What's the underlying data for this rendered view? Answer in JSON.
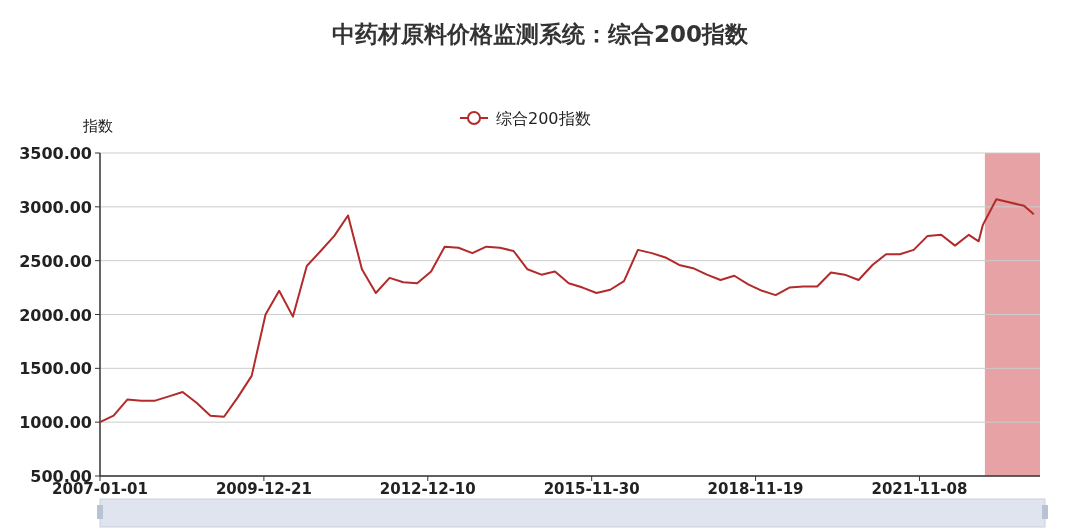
{
  "chart_data": {
    "type": "line",
    "title": "中药材原料价格监测系统：综合200指数",
    "ylabel": "指数",
    "x": [
      "2007-01-01",
      "2007-04-01",
      "2007-07-01",
      "2007-10-01",
      "2008-01-01",
      "2008-04-01",
      "2008-07-01",
      "2008-10-01",
      "2009-01-01",
      "2009-04-01",
      "2009-07-01",
      "2009-10-01",
      "2010-01-01",
      "2010-04-01",
      "2010-07-01",
      "2010-10-01",
      "2011-01-01",
      "2011-04-01",
      "2011-07-01",
      "2011-10-01",
      "2012-01-01",
      "2012-04-01",
      "2012-07-01",
      "2012-10-01",
      "2013-01-01",
      "2013-04-01",
      "2013-07-01",
      "2013-10-01",
      "2014-01-01",
      "2014-04-01",
      "2014-07-01",
      "2014-10-01",
      "2015-01-01",
      "2015-04-01",
      "2015-07-01",
      "2015-10-01",
      "2016-01-01",
      "2016-04-01",
      "2016-07-01",
      "2016-10-01",
      "2017-01-01",
      "2017-04-01",
      "2017-07-01",
      "2017-10-01",
      "2018-01-01",
      "2018-04-01",
      "2018-07-01",
      "2018-10-01",
      "2019-01-01",
      "2019-04-01",
      "2019-07-01",
      "2019-10-01",
      "2020-01-01",
      "2020-04-01",
      "2020-07-01",
      "2020-10-01",
      "2021-01-01",
      "2021-04-01",
      "2021-07-01",
      "2021-10-01",
      "2022-01-01",
      "2022-04-01",
      "2022-07-01",
      "2022-10-01",
      "2022-12-05",
      "2023-01-01",
      "2023-04-01",
      "2023-07-01",
      "2023-10-01",
      "2023-12-05"
    ],
    "series": [
      {
        "name": "综合200指数",
        "color": "#b22a2a",
        "values": [
          1000,
          1060,
          1210,
          1200,
          1200,
          1240,
          1280,
          1180,
          1060,
          1050,
          1230,
          1430,
          2000,
          2220,
          1980,
          2450,
          2590,
          2730,
          2920,
          2420,
          2200,
          2340,
          2300,
          2290,
          2400,
          2630,
          2620,
          2570,
          2630,
          2620,
          2590,
          2420,
          2370,
          2400,
          2290,
          2250,
          2200,
          2230,
          2310,
          2600,
          2570,
          2530,
          2460,
          2430,
          2370,
          2320,
          2360,
          2280,
          2220,
          2180,
          2250,
          2260,
          2260,
          2390,
          2370,
          2320,
          2460,
          2560,
          2560,
          2600,
          2730,
          2740,
          2640,
          2740,
          2680,
          2830,
          3070,
          3040,
          3010,
          2930
        ]
      }
    ],
    "xlim": [
      "2007-01-01",
      "2024-01-15"
    ],
    "xticks": [
      "2007-01-01",
      "2009-12-21",
      "2012-12-10",
      "2015-11-30",
      "2018-11-19",
      "2021-11-08"
    ],
    "ylim": [
      500,
      3500
    ],
    "yticks": [
      {
        "value": 500,
        "label": "500.00"
      },
      {
        "value": 1000,
        "label": "1000.00"
      },
      {
        "value": 1500,
        "label": "1500.00"
      },
      {
        "value": 2000,
        "label": "2000.00"
      },
      {
        "value": 2500,
        "label": "2500.00"
      },
      {
        "value": 3000,
        "label": "3000.00"
      },
      {
        "value": 3500,
        "label": "3500.00"
      }
    ],
    "bands": [
      {
        "axis": "x",
        "from": "2023-01-15",
        "to": "2024-01-15",
        "color": "#e6a2a4"
      }
    ],
    "grid": "y",
    "legend": "top"
  }
}
